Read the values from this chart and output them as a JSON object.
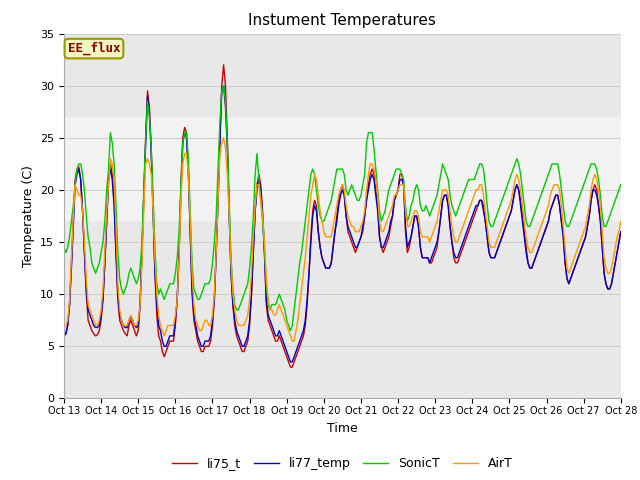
{
  "title": "Instument Temperatures",
  "xlabel": "Time",
  "ylabel": "Temperature (C)",
  "ylim": [
    0,
    35
  ],
  "background_color": "#ffffff",
  "plot_bg_color": "#e8e8e8",
  "band_y1": 17,
  "band_y2": 27,
  "annotation_text": "EE_flux",
  "annotation_text_color": "#8B0000",
  "annotation_box_facecolor": "#f5f5c0",
  "annotation_box_edgecolor": "#999900",
  "xtick_labels": [
    "Oct 13",
    "Oct 14",
    "Oct 15",
    "Oct 16",
    "Oct 17",
    "Oct 18",
    "Oct 19",
    "Oct 20",
    "Oct 21",
    "Oct 22",
    "Oct 23",
    "Oct 24",
    "Oct 25",
    "Oct 26",
    "Oct 27",
    "Oct 28"
  ],
  "xtick_positions": [
    13,
    14,
    15,
    16,
    17,
    18,
    19,
    20,
    21,
    22,
    23,
    24,
    25,
    26,
    27,
    28
  ],
  "legend_labels": [
    "li75_t",
    "li77_temp",
    "SonicT",
    "AirT"
  ],
  "line_colors": [
    "#cc0000",
    "#0000cc",
    "#00cc00",
    "#ff9900"
  ],
  "line_width": 1.0,
  "series": {
    "x": [
      13.0,
      13.05,
      13.1,
      13.15,
      13.2,
      13.25,
      13.3,
      13.35,
      13.4,
      13.45,
      13.5,
      13.55,
      13.6,
      13.65,
      13.7,
      13.75,
      13.8,
      13.85,
      13.9,
      13.95,
      14.0,
      14.05,
      14.1,
      14.15,
      14.2,
      14.25,
      14.3,
      14.35,
      14.4,
      14.45,
      14.5,
      14.55,
      14.6,
      14.65,
      14.7,
      14.75,
      14.8,
      14.85,
      14.9,
      14.95,
      15.0,
      15.05,
      15.1,
      15.15,
      15.2,
      15.25,
      15.3,
      15.35,
      15.4,
      15.45,
      15.5,
      15.55,
      15.6,
      15.65,
      15.7,
      15.75,
      15.8,
      15.85,
      15.9,
      15.95,
      16.0,
      16.05,
      16.1,
      16.15,
      16.2,
      16.25,
      16.3,
      16.35,
      16.4,
      16.45,
      16.5,
      16.55,
      16.6,
      16.65,
      16.7,
      16.75,
      16.8,
      16.85,
      16.9,
      16.95,
      17.0,
      17.05,
      17.1,
      17.15,
      17.2,
      17.25,
      17.3,
      17.35,
      17.4,
      17.45,
      17.5,
      17.55,
      17.6,
      17.65,
      17.7,
      17.75,
      17.8,
      17.85,
      17.9,
      17.95,
      18.0,
      18.05,
      18.1,
      18.15,
      18.2,
      18.25,
      18.3,
      18.35,
      18.4,
      18.45,
      18.5,
      18.55,
      18.6,
      18.65,
      18.7,
      18.75,
      18.8,
      18.85,
      18.9,
      18.95,
      19.0,
      19.05,
      19.1,
      19.15,
      19.2,
      19.25,
      19.3,
      19.35,
      19.4,
      19.45,
      19.5,
      19.55,
      19.6,
      19.65,
      19.7,
      19.75,
      19.8,
      19.85,
      19.9,
      19.95,
      20.0,
      20.05,
      20.1,
      20.15,
      20.2,
      20.25,
      20.3,
      20.35,
      20.4,
      20.45,
      20.5,
      20.55,
      20.6,
      20.65,
      20.7,
      20.75,
      20.8,
      20.85,
      20.9,
      20.95,
      21.0,
      21.05,
      21.1,
      21.15,
      21.2,
      21.25,
      21.3,
      21.35,
      21.4,
      21.45,
      21.5,
      21.55,
      21.6,
      21.65,
      21.7,
      21.75,
      21.8,
      21.85,
      21.9,
      21.95,
      22.0,
      22.05,
      22.1,
      22.15,
      22.2,
      22.25,
      22.3,
      22.35,
      22.4,
      22.45,
      22.5,
      22.55,
      22.6,
      22.65,
      22.7,
      22.75,
      22.8,
      22.85,
      22.9,
      22.95,
      23.0,
      23.05,
      23.1,
      23.15,
      23.2,
      23.25,
      23.3,
      23.35,
      23.4,
      23.45,
      23.5,
      23.55,
      23.6,
      23.65,
      23.7,
      23.75,
      23.8,
      23.85,
      23.9,
      23.95,
      24.0,
      24.05,
      24.1,
      24.15,
      24.2,
      24.25,
      24.3,
      24.35,
      24.4,
      24.45,
      24.5,
      24.55,
      24.6,
      24.65,
      24.7,
      24.75,
      24.8,
      24.85,
      24.9,
      24.95,
      25.0,
      25.05,
      25.1,
      25.15,
      25.2,
      25.25,
      25.3,
      25.35,
      25.4,
      25.45,
      25.5,
      25.55,
      25.6,
      25.65,
      25.7,
      25.75,
      25.8,
      25.85,
      25.9,
      25.95,
      26.0,
      26.05,
      26.1,
      26.15,
      26.2,
      26.25,
      26.3,
      26.35,
      26.4,
      26.45,
      26.5,
      26.55,
      26.6,
      26.65,
      26.7,
      26.75,
      26.8,
      26.85,
      26.9,
      26.95,
      27.0,
      27.05,
      27.1,
      27.15,
      27.2,
      27.25,
      27.3,
      27.35,
      27.4,
      27.45,
      27.5,
      27.55,
      27.6,
      27.65,
      27.7,
      27.75,
      27.8,
      27.85,
      27.9,
      27.95,
      28.0
    ],
    "li75_t": [
      6.0,
      6.2,
      7.0,
      9.0,
      13.0,
      17.0,
      21.0,
      22.0,
      22.2,
      21.0,
      18.0,
      14.0,
      10.0,
      7.5,
      7.0,
      6.5,
      6.2,
      6.0,
      6.1,
      6.5,
      7.5,
      9.5,
      13.0,
      17.0,
      21.0,
      22.5,
      21.5,
      19.0,
      14.0,
      9.5,
      7.5,
      7.0,
      6.5,
      6.2,
      6.0,
      7.0,
      7.5,
      7.0,
      6.5,
      6.0,
      6.5,
      9.0,
      14.0,
      19.5,
      25.0,
      29.5,
      28.0,
      24.0,
      18.0,
      12.0,
      8.0,
      6.0,
      5.5,
      4.5,
      4.0,
      4.5,
      5.0,
      5.5,
      5.5,
      5.5,
      7.0,
      9.5,
      14.0,
      20.5,
      25.0,
      26.0,
      25.5,
      22.0,
      16.0,
      10.0,
      7.5,
      6.5,
      5.5,
      5.0,
      4.5,
      4.5,
      5.0,
      5.0,
      5.0,
      5.5,
      7.0,
      9.5,
      14.0,
      19.0,
      25.0,
      30.0,
      32.0,
      30.0,
      25.0,
      18.0,
      12.0,
      9.0,
      7.0,
      6.0,
      5.5,
      5.0,
      4.5,
      4.5,
      5.0,
      5.5,
      7.0,
      10.0,
      14.0,
      18.0,
      20.5,
      21.5,
      20.5,
      18.0,
      14.0,
      9.0,
      7.5,
      7.0,
      6.5,
      6.0,
      5.5,
      5.5,
      6.0,
      5.5,
      5.0,
      4.5,
      4.0,
      3.5,
      3.0,
      3.0,
      3.5,
      4.0,
      4.5,
      5.0,
      5.5,
      6.0,
      7.0,
      9.0,
      12.0,
      15.5,
      18.0,
      19.0,
      18.5,
      16.0,
      14.5,
      13.5,
      13.0,
      12.5,
      12.5,
      12.5,
      13.0,
      14.5,
      16.0,
      17.5,
      19.0,
      20.0,
      20.5,
      19.5,
      17.5,
      16.0,
      15.5,
      15.0,
      14.5,
      14.0,
      14.5,
      15.0,
      15.5,
      16.0,
      17.5,
      19.0,
      20.5,
      21.5,
      22.0,
      21.5,
      20.0,
      18.5,
      15.5,
      14.5,
      14.0,
      14.5,
      15.0,
      15.5,
      16.5,
      17.5,
      19.0,
      19.5,
      20.0,
      21.5,
      21.5,
      20.5,
      16.0,
      14.0,
      14.5,
      15.5,
      16.5,
      17.5,
      17.5,
      16.5,
      14.5,
      13.5,
      13.5,
      13.5,
      13.5,
      13.0,
      13.0,
      13.5,
      14.0,
      14.5,
      16.0,
      17.5,
      19.0,
      19.5,
      19.5,
      18.5,
      16.5,
      15.0,
      13.5,
      13.0,
      13.0,
      13.5,
      14.0,
      14.5,
      15.0,
      15.5,
      16.0,
      16.5,
      17.0,
      17.5,
      18.0,
      18.5,
      19.0,
      19.0,
      18.5,
      17.0,
      15.5,
      14.0,
      13.5,
      13.5,
      13.5,
      14.0,
      14.5,
      15.0,
      15.5,
      16.0,
      16.5,
      17.0,
      17.5,
      18.0,
      19.0,
      20.0,
      20.5,
      20.0,
      19.0,
      17.5,
      16.0,
      14.5,
      13.0,
      12.5,
      12.5,
      13.0,
      13.5,
      14.0,
      14.5,
      15.0,
      15.5,
      16.0,
      16.5,
      17.0,
      18.0,
      18.5,
      19.0,
      19.5,
      19.5,
      18.5,
      17.0,
      15.5,
      13.0,
      11.5,
      11.0,
      11.5,
      12.0,
      12.5,
      13.0,
      13.5,
      14.0,
      14.5,
      15.0,
      15.5,
      16.5,
      17.5,
      19.0,
      20.0,
      20.5,
      20.0,
      18.5,
      17.0,
      14.5,
      12.0,
      11.0,
      10.5,
      10.5,
      11.0,
      12.0,
      13.0,
      14.0,
      15.0,
      16.0
    ],
    "li77_temp": [
      6.0,
      6.2,
      7.0,
      9.0,
      12.5,
      16.5,
      20.5,
      21.5,
      22.0,
      21.0,
      18.0,
      14.0,
      10.5,
      8.5,
      8.0,
      7.5,
      7.0,
      6.8,
      6.8,
      7.0,
      8.0,
      9.5,
      13.0,
      17.0,
      21.0,
      22.0,
      21.0,
      18.5,
      14.0,
      10.0,
      8.0,
      7.5,
      7.0,
      6.8,
      6.8,
      7.5,
      7.8,
      7.5,
      7.0,
      6.8,
      7.0,
      9.0,
      14.0,
      19.5,
      24.5,
      29.0,
      27.5,
      23.5,
      18.0,
      12.0,
      9.0,
      7.0,
      6.5,
      5.5,
      5.0,
      5.0,
      5.5,
      6.0,
      6.0,
      6.0,
      7.5,
      9.5,
      14.0,
      20.0,
      24.5,
      25.5,
      25.0,
      21.5,
      16.0,
      10.5,
      8.0,
      7.0,
      6.0,
      5.5,
      5.0,
      5.0,
      5.5,
      5.5,
      5.5,
      6.0,
      7.5,
      9.5,
      14.0,
      19.0,
      24.5,
      29.5,
      30.0,
      28.0,
      24.0,
      17.5,
      12.0,
      9.0,
      7.5,
      6.5,
      6.0,
      5.5,
      5.0,
      5.0,
      5.5,
      6.0,
      7.5,
      10.0,
      14.0,
      18.0,
      20.0,
      21.0,
      20.0,
      17.5,
      14.0,
      9.5,
      8.0,
      7.5,
      7.0,
      6.5,
      6.0,
      6.0,
      6.5,
      6.0,
      5.5,
      5.0,
      4.5,
      4.0,
      3.5,
      3.5,
      4.0,
      4.5,
      5.0,
      5.5,
      6.0,
      6.5,
      7.5,
      9.5,
      12.0,
      15.0,
      17.5,
      18.5,
      18.0,
      16.0,
      14.5,
      13.5,
      13.0,
      12.5,
      12.5,
      12.5,
      13.0,
      14.5,
      16.0,
      17.0,
      18.5,
      19.5,
      20.0,
      19.5,
      17.5,
      16.5,
      16.0,
      15.5,
      15.0,
      14.5,
      14.5,
      15.0,
      15.5,
      16.5,
      17.5,
      19.0,
      20.0,
      21.0,
      21.5,
      21.0,
      19.5,
      18.0,
      15.5,
      14.5,
      14.5,
      15.0,
      15.5,
      16.0,
      17.0,
      17.5,
      19.0,
      19.5,
      20.0,
      21.0,
      21.0,
      20.5,
      16.5,
      14.5,
      15.0,
      15.5,
      16.5,
      17.5,
      17.5,
      16.5,
      14.5,
      13.5,
      13.5,
      13.5,
      13.5,
      13.0,
      13.5,
      14.0,
      14.5,
      15.0,
      16.0,
      17.5,
      19.0,
      19.5,
      19.5,
      18.5,
      16.5,
      15.0,
      14.0,
      13.5,
      13.5,
      14.0,
      14.5,
      15.0,
      15.5,
      16.0,
      16.5,
      17.0,
      17.5,
      18.0,
      18.5,
      18.5,
      19.0,
      19.0,
      18.0,
      17.0,
      15.5,
      14.0,
      13.5,
      13.5,
      13.5,
      14.0,
      14.5,
      15.0,
      15.5,
      16.0,
      16.5,
      17.0,
      17.5,
      18.0,
      19.0,
      20.0,
      20.5,
      20.0,
      18.5,
      17.0,
      15.5,
      14.0,
      13.0,
      12.5,
      12.5,
      13.0,
      13.5,
      14.0,
      14.5,
      15.0,
      15.5,
      16.0,
      16.5,
      17.0,
      18.0,
      18.5,
      19.0,
      19.5,
      19.5,
      18.5,
      17.0,
      15.5,
      13.0,
      11.5,
      11.0,
      11.5,
      12.0,
      12.5,
      13.0,
      13.5,
      14.0,
      14.5,
      15.0,
      15.5,
      16.5,
      17.5,
      19.0,
      20.0,
      20.0,
      19.5,
      18.5,
      17.0,
      14.5,
      12.0,
      11.0,
      10.5,
      10.5,
      11.0,
      12.0,
      13.0,
      14.0,
      15.0,
      16.0
    ],
    "SonicT": [
      14.5,
      14.0,
      14.5,
      15.5,
      17.0,
      18.5,
      20.5,
      22.0,
      22.5,
      22.5,
      21.5,
      20.0,
      17.5,
      15.5,
      14.5,
      13.0,
      12.5,
      12.0,
      12.5,
      13.0,
      14.0,
      15.0,
      17.0,
      20.0,
      22.0,
      25.5,
      24.5,
      22.5,
      18.5,
      14.0,
      11.5,
      10.5,
      10.0,
      10.5,
      11.0,
      12.0,
      12.5,
      12.0,
      11.5,
      11.0,
      11.5,
      12.5,
      15.0,
      20.0,
      25.0,
      28.5,
      27.0,
      24.0,
      19.5,
      14.5,
      11.0,
      10.0,
      10.5,
      10.0,
      9.5,
      10.0,
      10.5,
      11.0,
      11.0,
      11.0,
      12.0,
      13.5,
      16.0,
      20.5,
      24.5,
      25.5,
      25.5,
      23.0,
      18.0,
      13.0,
      10.5,
      10.0,
      9.5,
      9.5,
      10.0,
      10.5,
      11.0,
      11.0,
      11.0,
      11.5,
      13.0,
      15.0,
      17.5,
      22.0,
      26.5,
      29.5,
      30.0,
      28.5,
      24.5,
      19.0,
      13.5,
      10.5,
      9.0,
      8.5,
      8.5,
      9.0,
      9.5,
      10.0,
      10.5,
      11.0,
      12.5,
      14.5,
      17.5,
      21.5,
      23.5,
      21.0,
      19.0,
      17.0,
      14.5,
      11.0,
      9.0,
      8.5,
      9.0,
      9.0,
      9.0,
      9.5,
      10.0,
      9.5,
      9.0,
      8.5,
      7.5,
      7.0,
      6.5,
      7.0,
      8.5,
      10.0,
      11.5,
      13.0,
      14.0,
      15.5,
      17.0,
      18.5,
      20.0,
      21.5,
      22.0,
      21.5,
      20.0,
      18.5,
      17.5,
      17.0,
      17.0,
      17.5,
      18.0,
      18.5,
      19.0,
      20.0,
      21.0,
      22.0,
      22.0,
      22.0,
      22.0,
      21.5,
      20.0,
      19.5,
      20.0,
      20.5,
      20.0,
      19.5,
      19.0,
      19.0,
      19.5,
      20.5,
      21.5,
      24.5,
      25.5,
      25.5,
      25.5,
      24.0,
      22.0,
      20.0,
      18.0,
      17.0,
      17.5,
      18.0,
      19.0,
      20.0,
      20.5,
      21.0,
      21.5,
      22.0,
      22.0,
      22.0,
      21.5,
      21.0,
      18.5,
      17.0,
      17.5,
      18.5,
      19.0,
      20.0,
      20.5,
      20.0,
      18.5,
      18.0,
      18.0,
      18.5,
      18.0,
      17.5,
      18.0,
      18.5,
      19.0,
      19.5,
      20.5,
      21.5,
      22.5,
      22.0,
      21.5,
      21.0,
      19.5,
      18.5,
      18.0,
      17.5,
      18.0,
      18.5,
      19.0,
      19.5,
      20.0,
      20.5,
      21.0,
      21.0,
      21.0,
      21.0,
      21.5,
      22.0,
      22.5,
      22.5,
      22.0,
      20.5,
      18.5,
      17.0,
      16.5,
      16.5,
      17.0,
      17.5,
      18.0,
      18.5,
      19.0,
      19.5,
      20.0,
      20.5,
      21.0,
      21.5,
      22.0,
      22.5,
      23.0,
      22.5,
      21.5,
      20.0,
      18.5,
      17.0,
      16.5,
      16.5,
      17.0,
      17.5,
      18.0,
      18.5,
      19.0,
      19.5,
      20.0,
      20.5,
      21.0,
      21.5,
      22.0,
      22.5,
      22.5,
      22.5,
      22.5,
      21.5,
      20.0,
      18.5,
      17.0,
      16.5,
      16.5,
      17.0,
      17.5,
      18.0,
      18.5,
      19.0,
      19.5,
      20.0,
      20.5,
      21.0,
      21.5,
      22.0,
      22.5,
      22.5,
      22.5,
      22.0,
      21.0,
      19.5,
      17.5,
      16.5,
      16.5,
      17.0,
      17.5,
      18.0,
      18.5,
      19.0,
      19.5,
      20.0,
      20.5
    ],
    "AirT": [
      7.0,
      7.0,
      7.5,
      9.5,
      13.5,
      17.5,
      20.5,
      20.0,
      19.5,
      19.5,
      18.0,
      15.0,
      11.5,
      9.0,
      8.5,
      8.0,
      7.5,
      7.0,
      7.0,
      7.5,
      8.5,
      10.5,
      14.0,
      18.0,
      20.5,
      23.0,
      22.5,
      21.0,
      16.5,
      11.0,
      8.5,
      7.5,
      7.0,
      7.0,
      7.0,
      7.5,
      8.0,
      7.5,
      7.0,
      7.0,
      7.5,
      9.0,
      13.0,
      18.0,
      22.5,
      23.0,
      22.5,
      21.5,
      18.0,
      13.5,
      10.0,
      8.0,
      7.0,
      6.5,
      6.0,
      6.5,
      7.0,
      7.0,
      7.0,
      7.0,
      8.0,
      9.5,
      13.5,
      19.0,
      22.5,
      23.5,
      23.5,
      21.5,
      17.0,
      12.0,
      9.0,
      7.5,
      7.0,
      6.5,
      6.5,
      7.0,
      7.5,
      7.5,
      7.0,
      7.0,
      8.0,
      10.0,
      14.0,
      19.0,
      23.5,
      24.5,
      25.0,
      24.0,
      21.5,
      17.5,
      13.0,
      10.0,
      8.5,
      7.5,
      7.0,
      7.0,
      7.0,
      7.0,
      7.5,
      8.0,
      9.5,
      12.0,
      15.5,
      18.5,
      20.5,
      20.5,
      19.0,
      17.5,
      15.0,
      11.5,
      9.5,
      8.5,
      8.5,
      8.0,
      8.0,
      8.5,
      9.0,
      8.5,
      8.0,
      7.5,
      7.0,
      6.5,
      6.0,
      5.5,
      5.5,
      6.5,
      7.5,
      9.0,
      10.5,
      12.0,
      13.5,
      15.5,
      17.5,
      19.5,
      20.5,
      21.5,
      21.0,
      19.5,
      18.0,
      17.0,
      16.0,
      15.5,
      15.5,
      15.5,
      15.5,
      16.5,
      17.5,
      18.5,
      19.5,
      20.0,
      20.5,
      20.0,
      18.5,
      17.5,
      17.0,
      16.5,
      16.5,
      16.0,
      16.0,
      16.0,
      16.5,
      17.0,
      18.0,
      20.0,
      21.5,
      22.5,
      22.5,
      22.0,
      21.0,
      19.5,
      17.0,
      16.0,
      16.0,
      16.5,
      17.0,
      17.5,
      18.0,
      18.5,
      19.5,
      19.5,
      20.0,
      20.5,
      20.5,
      20.5,
      18.0,
      16.5,
      16.5,
      17.0,
      17.5,
      18.0,
      18.0,
      17.5,
      16.0,
      15.5,
      15.5,
      15.5,
      15.5,
      15.0,
      15.5,
      16.0,
      16.5,
      17.0,
      18.0,
      19.0,
      20.0,
      20.0,
      20.0,
      19.5,
      18.0,
      16.5,
      15.5,
      15.0,
      15.0,
      15.5,
      16.0,
      16.5,
      17.0,
      17.5,
      18.0,
      18.5,
      19.0,
      19.5,
      20.0,
      20.0,
      20.5,
      20.5,
      19.5,
      18.0,
      16.5,
      15.0,
      14.5,
      14.5,
      14.5,
      15.0,
      15.5,
      16.0,
      16.5,
      17.0,
      17.5,
      18.0,
      18.5,
      19.0,
      20.0,
      21.0,
      21.5,
      21.0,
      20.0,
      18.5,
      17.0,
      15.5,
      14.5,
      14.0,
      14.0,
      14.5,
      15.0,
      15.5,
      16.0,
      16.5,
      17.0,
      17.5,
      18.0,
      18.5,
      19.5,
      20.0,
      20.5,
      20.5,
      20.5,
      20.0,
      18.5,
      16.5,
      14.5,
      12.5,
      12.0,
      12.5,
      13.0,
      13.5,
      14.0,
      14.5,
      15.0,
      15.5,
      16.0,
      16.5,
      17.5,
      18.5,
      20.0,
      21.0,
      21.5,
      21.0,
      20.0,
      18.5,
      16.0,
      13.5,
      12.5,
      12.0,
      12.0,
      12.5,
      13.5,
      14.5,
      15.5,
      16.0,
      17.0
    ]
  }
}
